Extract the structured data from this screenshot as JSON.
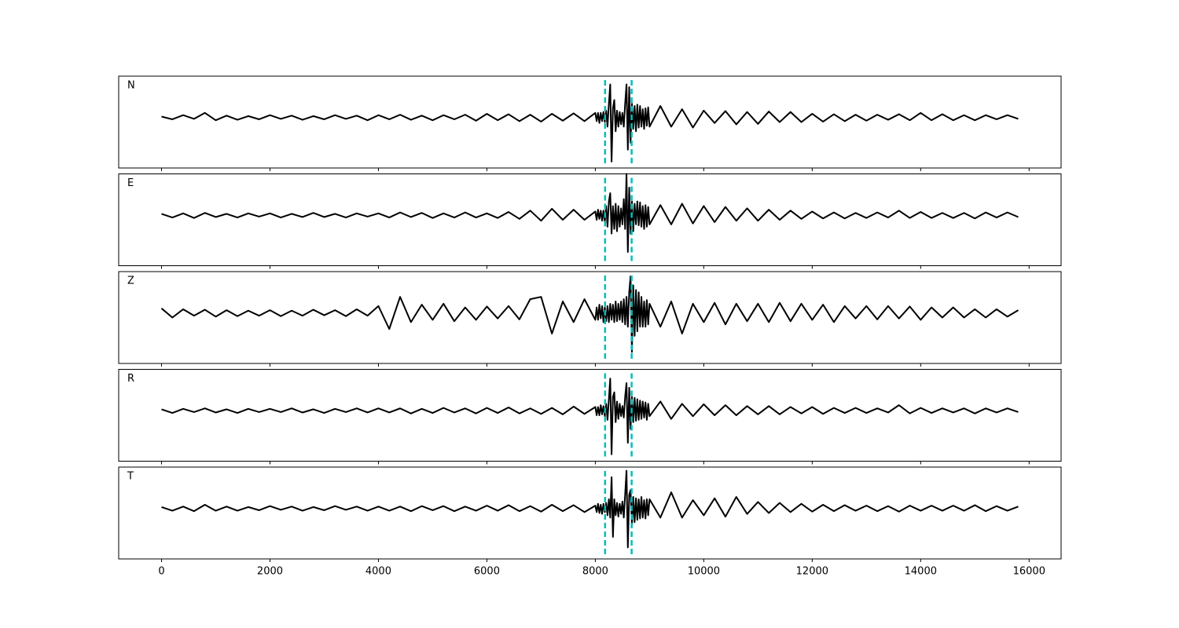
{
  "chart_data": {
    "type": "line",
    "x": [
      0,
      200,
      400,
      600,
      800,
      1000,
      1200,
      1400,
      1600,
      1800,
      2000,
      2200,
      2400,
      2600,
      2800,
      3000,
      3200,
      3400,
      3600,
      3800,
      4000,
      4200,
      4400,
      4600,
      4800,
      5000,
      5200,
      5400,
      5600,
      5800,
      6000,
      6200,
      6400,
      6600,
      6800,
      7000,
      7200,
      7400,
      7600,
      7800,
      8000,
      8025,
      8050,
      8075,
      8100,
      8125,
      8150,
      8175,
      8200,
      8225,
      8250,
      8275,
      8300,
      8325,
      8350,
      8375,
      8400,
      8425,
      8450,
      8475,
      8500,
      8525,
      8550,
      8575,
      8600,
      8625,
      8650,
      8675,
      8700,
      8725,
      8750,
      8775,
      8800,
      8825,
      8850,
      8875,
      8900,
      8925,
      8950,
      8975,
      9000,
      9200,
      9400,
      9600,
      9800,
      10000,
      10200,
      10400,
      10600,
      10800,
      11000,
      11200,
      11400,
      11600,
      11800,
      12000,
      12200,
      12400,
      12600,
      12800,
      13000,
      13200,
      13400,
      13600,
      13800,
      14000,
      14200,
      14400,
      14600,
      14800,
      15000,
      15200,
      15400,
      15600,
      15800
    ],
    "xlim": [
      -790,
      16590
    ],
    "xticks": [
      0,
      2000,
      4000,
      6000,
      8000,
      10000,
      12000,
      14000,
      16000
    ],
    "ylim": [
      -1.1,
      0.9
    ],
    "color": "#000000",
    "vlines": [
      8180,
      8670
    ],
    "vline_color": "#00bfbf",
    "series": [
      {
        "name": "N",
        "values": [
          0.02,
          -0.04,
          0.05,
          -0.03,
          0.1,
          -0.06,
          0.04,
          -0.05,
          0.03,
          -0.04,
          0.05,
          -0.03,
          0.04,
          -0.05,
          0.03,
          -0.04,
          0.05,
          -0.03,
          0.04,
          -0.06,
          0.05,
          -0.04,
          0.06,
          -0.05,
          0.04,
          -0.06,
          0.05,
          -0.04,
          0.06,
          -0.07,
          0.08,
          -0.06,
          0.07,
          -0.08,
          0.06,
          -0.09,
          0.08,
          -0.07,
          0.09,
          -0.08,
          0.1,
          -0.08,
          0.1,
          -0.12,
          0.1,
          -0.08,
          0.12,
          -0.1,
          0.15,
          -0.2,
          0.3,
          0.72,
          -0.96,
          0.2,
          0.38,
          -0.3,
          0.15,
          -0.2,
          0.12,
          -0.15,
          0.1,
          -0.2,
          0.3,
          0.72,
          -0.7,
          0.66,
          -0.55,
          0.3,
          -0.25,
          0.25,
          -0.3,
          0.28,
          -0.22,
          0.25,
          -0.2,
          0.18,
          -0.25,
          0.2,
          -0.18,
          0.22,
          -0.2,
          0.25,
          -0.2,
          0.18,
          -0.22,
          0.15,
          -0.12,
          0.14,
          -0.15,
          0.12,
          -0.14,
          0.13,
          -0.1,
          0.12,
          -0.1,
          0.08,
          -0.09,
          0.07,
          -0.08,
          0.06,
          -0.07,
          0.06,
          -0.05,
          0.07,
          -0.06,
          0.1,
          -0.06,
          0.07,
          -0.06,
          0.05,
          -0.06,
          0.05,
          -0.04,
          0.05,
          -0.03
        ]
      },
      {
        "name": "E",
        "values": [
          0.03,
          -0.05,
          0.04,
          -0.06,
          0.05,
          -0.04,
          0.03,
          -0.05,
          0.04,
          -0.03,
          0.04,
          -0.05,
          0.03,
          -0.04,
          0.05,
          -0.04,
          0.03,
          -0.05,
          0.04,
          -0.03,
          0.04,
          -0.05,
          0.06,
          -0.04,
          0.05,
          -0.06,
          0.04,
          -0.05,
          0.06,
          -0.05,
          0.04,
          -0.06,
          0.07,
          -0.08,
          0.1,
          -0.12,
          0.14,
          -0.1,
          0.12,
          -0.1,
          0.08,
          -0.1,
          0.12,
          -0.08,
          0.1,
          -0.12,
          0.1,
          -0.15,
          0.2,
          -0.25,
          0.3,
          0.48,
          -0.4,
          0.2,
          -0.3,
          0.25,
          -0.35,
          0.2,
          -0.25,
          0.15,
          -0.2,
          0.35,
          -0.3,
          0.9,
          -0.8,
          0.6,
          -0.4,
          0.3,
          -0.35,
          0.25,
          -0.2,
          0.3,
          -0.22,
          0.28,
          -0.25,
          0.2,
          -0.3,
          0.22,
          -0.25,
          0.18,
          -0.2,
          0.22,
          -0.2,
          0.25,
          -0.18,
          0.2,
          -0.15,
          0.18,
          -0.12,
          0.15,
          -0.12,
          0.12,
          -0.1,
          0.1,
          -0.08,
          0.08,
          -0.07,
          0.06,
          -0.07,
          0.05,
          -0.06,
          0.06,
          -0.05,
          0.1,
          -0.06,
          0.07,
          -0.06,
          0.05,
          -0.06,
          0.05,
          -0.07,
          0.06,
          -0.05,
          0.06,
          -0.04
        ]
      },
      {
        "name": "Z",
        "values": [
          0.1,
          -0.1,
          0.08,
          -0.06,
          0.07,
          -0.08,
          0.06,
          -0.07,
          0.05,
          -0.06,
          0.06,
          -0.07,
          0.05,
          -0.06,
          0.07,
          -0.05,
          0.06,
          -0.07,
          0.08,
          -0.06,
          0.15,
          -0.35,
          0.35,
          -0.2,
          0.18,
          -0.15,
          0.2,
          -0.18,
          0.12,
          -0.15,
          0.14,
          -0.12,
          0.15,
          -0.14,
          0.3,
          0.35,
          -0.45,
          0.25,
          -0.2,
          0.3,
          -0.15,
          0.12,
          -0.15,
          0.18,
          -0.12,
          0.15,
          -0.2,
          0.12,
          -0.18,
          0.15,
          -0.2,
          0.2,
          -0.15,
          0.18,
          -0.2,
          0.25,
          -0.18,
          0.2,
          -0.15,
          0.25,
          -0.2,
          0.3,
          -0.25,
          0.35,
          -0.3,
          0.45,
          0.8,
          -0.85,
          0.6,
          -0.5,
          0.5,
          -0.4,
          0.45,
          -0.3,
          0.35,
          -0.3,
          0.25,
          -0.3,
          0.28,
          -0.25,
          0.2,
          -0.3,
          0.25,
          -0.45,
          0.2,
          -0.2,
          0.22,
          -0.25,
          0.2,
          -0.18,
          0.2,
          -0.2,
          0.22,
          -0.18,
          0.2,
          -0.15,
          0.18,
          -0.2,
          0.15,
          -0.12,
          0.15,
          -0.14,
          0.15,
          -0.12,
          0.14,
          -0.15,
          0.12,
          -0.1,
          0.12,
          -0.1,
          0.08,
          -0.1,
          0.08,
          -0.08,
          0.06
        ]
      },
      {
        "name": "R",
        "values": [
          0.03,
          -0.05,
          0.04,
          -0.03,
          0.05,
          -0.04,
          0.03,
          -0.05,
          0.04,
          -0.03,
          0.04,
          -0.03,
          0.05,
          -0.04,
          0.03,
          -0.05,
          0.04,
          -0.03,
          0.05,
          -0.04,
          0.05,
          -0.04,
          0.05,
          -0.06,
          0.04,
          -0.05,
          0.06,
          -0.04,
          0.05,
          -0.06,
          0.06,
          -0.05,
          0.07,
          -0.06,
          0.05,
          -0.07,
          0.06,
          -0.08,
          0.09,
          -0.07,
          0.08,
          -0.1,
          0.08,
          -0.1,
          0.12,
          -0.08,
          0.1,
          -0.12,
          0.15,
          -0.2,
          0.25,
          0.7,
          -0.95,
          0.3,
          0.4,
          -0.25,
          0.2,
          -0.18,
          0.15,
          -0.12,
          0.1,
          -0.15,
          0.3,
          0.6,
          -0.7,
          0.5,
          -0.4,
          0.3,
          -0.25,
          0.28,
          -0.22,
          0.25,
          -0.2,
          0.22,
          -0.18,
          0.2,
          -0.15,
          0.18,
          -0.2,
          0.15,
          -0.12,
          0.2,
          -0.18,
          0.15,
          -0.12,
          0.14,
          -0.1,
          0.12,
          -0.1,
          0.1,
          -0.08,
          0.1,
          -0.08,
          0.08,
          -0.06,
          0.08,
          -0.07,
          0.06,
          -0.05,
          0.06,
          -0.05,
          0.05,
          -0.04,
          0.12,
          -0.06,
          0.06,
          -0.05,
          0.05,
          -0.04,
          0.05,
          -0.06,
          0.05,
          -0.04,
          0.05,
          -0.03
        ]
      },
      {
        "name": "T",
        "values": [
          0.03,
          -0.05,
          0.04,
          -0.06,
          0.08,
          -0.05,
          0.04,
          -0.05,
          0.03,
          -0.04,
          0.05,
          -0.03,
          0.04,
          -0.05,
          0.03,
          -0.04,
          0.05,
          -0.03,
          0.04,
          -0.05,
          0.04,
          -0.05,
          0.04,
          -0.06,
          0.05,
          -0.04,
          0.05,
          -0.06,
          0.04,
          -0.05,
          0.06,
          -0.05,
          0.07,
          -0.06,
          0.05,
          -0.07,
          0.08,
          -0.06,
          0.07,
          -0.08,
          0.06,
          -0.08,
          0.1,
          -0.1,
          0.08,
          -0.12,
          0.1,
          -0.08,
          0.12,
          -0.15,
          0.2,
          -0.2,
          0.68,
          -0.62,
          0.2,
          -0.15,
          0.12,
          -0.18,
          0.1,
          -0.12,
          0.15,
          -0.2,
          0.3,
          0.82,
          -0.85,
          0.3,
          0.4,
          -0.35,
          0.25,
          -0.3,
          0.22,
          -0.25,
          0.2,
          -0.22,
          0.25,
          -0.2,
          0.18,
          -0.22,
          0.2,
          -0.15,
          0.2,
          -0.2,
          0.35,
          -0.2,
          0.18,
          -0.15,
          0.22,
          -0.18,
          0.25,
          -0.12,
          0.14,
          -0.1,
          0.12,
          -0.08,
          0.1,
          -0.07,
          0.08,
          -0.06,
          0.07,
          -0.05,
          0.06,
          -0.06,
          0.05,
          -0.07,
          0.06,
          -0.05,
          0.06,
          -0.05,
          0.06,
          -0.05,
          0.07,
          -0.06,
          0.05,
          -0.05,
          0.04
        ]
      }
    ]
  }
}
